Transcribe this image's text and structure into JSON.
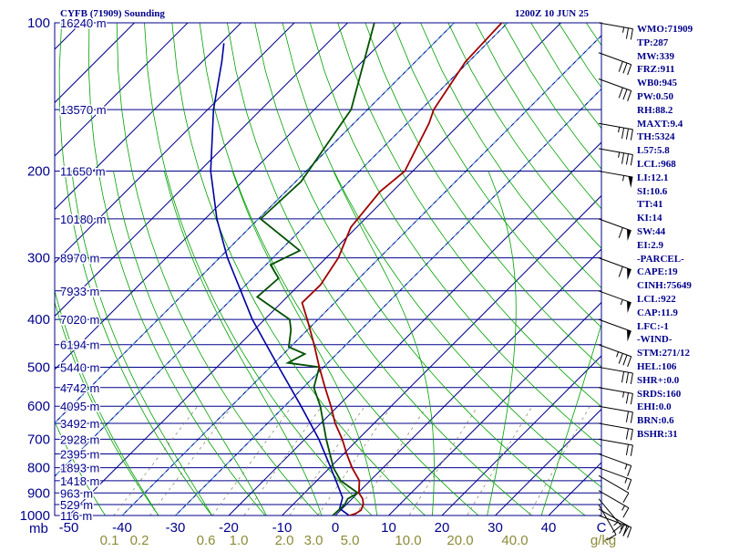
{
  "header": {
    "title": "CYFB (71909) Sounding",
    "time": "1200Z 10 JUN 25"
  },
  "indices": [
    "WMO:71909",
    "TP:287",
    "MW:339",
    "FRZ:911",
    "WB0:945",
    "PW:0.50",
    "RH:88.2",
    "MAXT:9.4",
    "TH:5324",
    "L57:5.8",
    "LCL:968",
    "LI:12.1",
    "SI:10.6",
    "TT:41",
    "KI:14",
    "SW:44",
    "EI:2.9",
    "-PARCEL-",
    "CAPE:19",
    "CINH:75649",
    "LCL:922",
    "CAP:11.9",
    "LFC:-1",
    "-WIND-",
    "STM:271/12",
    "HEL:106",
    "SHR+:0.0",
    "SRDS:160",
    "EHI:0.0",
    "BRN:0.6",
    "BSHR:31"
  ],
  "chart_data": {
    "type": "skew-t",
    "title": "CYFB (71909) Sounding",
    "pressure_unit": "mb",
    "pressure_ticks": [
      100,
      200,
      300,
      400,
      500,
      600,
      700,
      800,
      900,
      1000
    ],
    "height_labels": [
      {
        "p": 100,
        "h": "16240 m"
      },
      {
        "p": 150,
        "h": "13570 m"
      },
      {
        "p": 200,
        "h": "11650 m"
      },
      {
        "p": 250,
        "h": "10180 m"
      },
      {
        "p": 300,
        "h": "8970 m"
      },
      {
        "p": 350,
        "h": "7933 m"
      },
      {
        "p": 400,
        "h": "7020 m"
      },
      {
        "p": 450,
        "h": "6194 m"
      },
      {
        "p": 500,
        "h": "5440 m"
      },
      {
        "p": 550,
        "h": "4742 m"
      },
      {
        "p": 600,
        "h": "4095 m"
      },
      {
        "p": 650,
        "h": "3492 m"
      },
      {
        "p": 700,
        "h": "2928 m"
      },
      {
        "p": 750,
        "h": "2395 m"
      },
      {
        "p": 800,
        "h": "1893 m"
      },
      {
        "p": 850,
        "h": "1418 m"
      },
      {
        "p": 900,
        "h": "963 m"
      },
      {
        "p": 950,
        "h": "529 m"
      },
      {
        "p": 1000,
        "h": "116 m"
      }
    ],
    "temp_ticks": [
      -50,
      -40,
      -30,
      -20,
      -10,
      0,
      10,
      20,
      30,
      40
    ],
    "temp_tick_labels": [
      "-50",
      "-40",
      "-30",
      "-20",
      "-10",
      "0",
      "10",
      "20",
      "30",
      "40"
    ],
    "temp_unit_label": "C",
    "mixing_ratio_labels": [
      "0.1",
      "0.2",
      "0.6",
      "1.0",
      "2.0",
      "3.0",
      "5.0",
      "10.0",
      "20.0",
      "40.0"
    ],
    "mixing_ratio_unit": "g/kg",
    "temperature_profile": [
      {
        "p": 1003,
        "t": 2.5
      },
      {
        "p": 990,
        "t": 3.5
      },
      {
        "p": 975,
        "t": 3.8
      },
      {
        "p": 950,
        "t": 3.2
      },
      {
        "p": 925,
        "t": 2.0
      },
      {
        "p": 900,
        "t": 0.2
      },
      {
        "p": 850,
        "t": -2.0
      },
      {
        "p": 800,
        "t": -5.8
      },
      {
        "p": 750,
        "t": -9.4
      },
      {
        "p": 700,
        "t": -13.0
      },
      {
        "p": 650,
        "t": -17.3
      },
      {
        "p": 600,
        "t": -21.3
      },
      {
        "p": 550,
        "t": -25.9
      },
      {
        "p": 500,
        "t": -30.8
      },
      {
        "p": 450,
        "t": -36.0
      },
      {
        "p": 400,
        "t": -42.0
      },
      {
        "p": 370,
        "t": -46.1
      },
      {
        "p": 340,
        "t": -46.0
      },
      {
        "p": 300,
        "t": -47.7
      },
      {
        "p": 260,
        "t": -51.1
      },
      {
        "p": 220,
        "t": -52.3
      },
      {
        "p": 200,
        "t": -51.5
      },
      {
        "p": 160,
        "t": -55.9
      },
      {
        "p": 150,
        "t": -57.6
      },
      {
        "p": 120,
        "t": -60.6
      },
      {
        "p": 100,
        "t": -61.1
      }
    ],
    "dewpoint_profile": [
      {
        "p": 1000,
        "t": -0.5
      },
      {
        "p": 975,
        "t": -0.4
      },
      {
        "p": 950,
        "t": -0.3
      },
      {
        "p": 925,
        "t": -0.8
      },
      {
        "p": 900,
        "t": 0.0
      },
      {
        "p": 850,
        "t": -5.5
      },
      {
        "p": 800,
        "t": -9.3
      },
      {
        "p": 700,
        "t": -16.0
      },
      {
        "p": 600,
        "t": -23.3
      },
      {
        "p": 550,
        "t": -28.0
      },
      {
        "p": 500,
        "t": -30.8
      },
      {
        "p": 490,
        "t": -37.5
      },
      {
        "p": 470,
        "t": -36.0
      },
      {
        "p": 455,
        "t": -40.3
      },
      {
        "p": 420,
        "t": -43.1
      },
      {
        "p": 400,
        "t": -45.3
      },
      {
        "p": 360,
        "t": -55.6
      },
      {
        "p": 330,
        "t": -55.1
      },
      {
        "p": 310,
        "t": -59.1
      },
      {
        "p": 290,
        "t": -56.3
      },
      {
        "p": 250,
        "t": -69.6
      },
      {
        "p": 210,
        "t": -69.0
      },
      {
        "p": 150,
        "t": -73.1
      },
      {
        "p": 100,
        "t": -85.0
      }
    ],
    "parcel_profile": [
      {
        "p": 1000,
        "t": 2.6
      },
      {
        "p": 968,
        "t": -0.5
      },
      {
        "p": 920,
        "t": -2.0
      },
      {
        "p": 850,
        "t": -6.4
      },
      {
        "p": 800,
        "t": -9.8
      },
      {
        "p": 700,
        "t": -17.4
      },
      {
        "p": 600,
        "t": -26.9
      },
      {
        "p": 500,
        "t": -38.4
      },
      {
        "p": 400,
        "t": -52.3
      },
      {
        "p": 300,
        "t": -68.5
      },
      {
        "p": 250,
        "t": -77.8
      },
      {
        "p": 200,
        "t": -87.9
      },
      {
        "p": 150,
        "t": -98.9
      },
      {
        "p": 120,
        "t": -106.3
      },
      {
        "p": 110,
        "t": -109.4
      }
    ],
    "wind_barbs": [
      {
        "p": 1000,
        "dir": 290,
        "spd": 25
      },
      {
        "p": 970,
        "dir": 300,
        "spd": 20
      },
      {
        "p": 950,
        "dir": 330,
        "spd": 10
      },
      {
        "p": 925,
        "dir": 320,
        "spd": 15
      },
      {
        "p": 890,
        "dir": 300,
        "spd": 15
      },
      {
        "p": 830,
        "dir": 300,
        "spd": 10
      },
      {
        "p": 800,
        "dir": 290,
        "spd": 15
      },
      {
        "p": 750,
        "dir": 290,
        "spd": 15
      },
      {
        "p": 700,
        "dir": 280,
        "spd": 20
      },
      {
        "p": 650,
        "dir": 280,
        "spd": 20
      },
      {
        "p": 600,
        "dir": 280,
        "spd": 20
      },
      {
        "p": 550,
        "dir": 280,
        "spd": 25
      },
      {
        "p": 500,
        "dir": 280,
        "spd": 30
      },
      {
        "p": 450,
        "dir": 290,
        "spd": 35
      },
      {
        "p": 400,
        "dir": 290,
        "spd": 50
      },
      {
        "p": 350,
        "dir": 290,
        "spd": 55
      },
      {
        "p": 300,
        "dir": 290,
        "spd": 60
      },
      {
        "p": 250,
        "dir": 290,
        "spd": 60
      },
      {
        "p": 200,
        "dir": 280,
        "spd": 55
      },
      {
        "p": 180,
        "dir": 280,
        "spd": 35
      },
      {
        "p": 160,
        "dir": 280,
        "spd": 35
      },
      {
        "p": 130,
        "dir": 290,
        "spd": 30
      },
      {
        "p": 115,
        "dir": 290,
        "spd": 30
      },
      {
        "p": 100,
        "dir": 280,
        "spd": 25
      }
    ],
    "colors": {
      "isobar": "#00008b",
      "isotherm": "#00008b",
      "dry_adiabat": "#00a000",
      "moist_adiabat": "#00a000",
      "mixing_ratio": "#7f7f5f",
      "mixing_label": "#8b8b3a",
      "temperature": "#a00000",
      "dewpoint": "#005000",
      "parcel": "#0000a0",
      "isotherm_dashed": "#4aaad8",
      "text": "#00008b",
      "wind": "#000000"
    }
  }
}
